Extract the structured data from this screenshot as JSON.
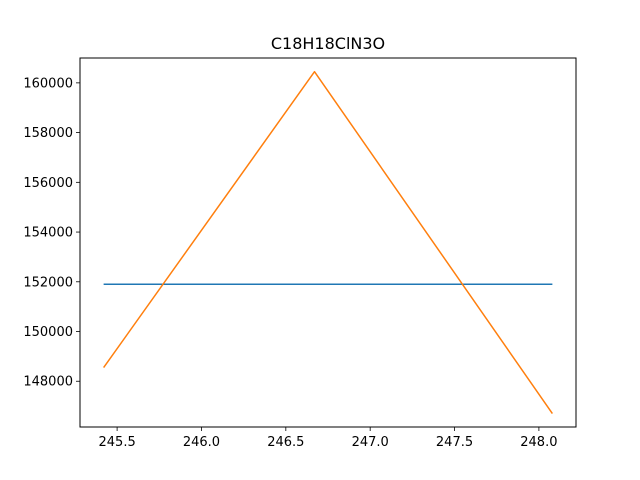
{
  "chart_data": {
    "type": "line",
    "title": "C18H18ClN3O",
    "xlabel": "",
    "ylabel": "",
    "xlim": [
      245.28,
      248.22
    ],
    "ylim": [
      146160,
      161000
    ],
    "x_ticks": [
      245.5,
      246.0,
      246.5,
      247.0,
      247.5,
      248.0
    ],
    "x_tick_labels": [
      "245.5",
      "246.0",
      "246.5",
      "247.0",
      "247.5",
      "248.0"
    ],
    "y_ticks": [
      148000,
      150000,
      152000,
      154000,
      156000,
      158000,
      160000
    ],
    "y_tick_labels": [
      "148000",
      "150000",
      "152000",
      "154000",
      "156000",
      "158000",
      "160000"
    ],
    "grid": false,
    "series": [
      {
        "color": "#1f77b4",
        "x": [
          245.42,
          248.08
        ],
        "y": [
          151900,
          151900
        ]
      },
      {
        "color": "#ff7f0e",
        "x": [
          245.42,
          246.67,
          248.08
        ],
        "y": [
          148550,
          160450,
          146700
        ]
      }
    ]
  }
}
